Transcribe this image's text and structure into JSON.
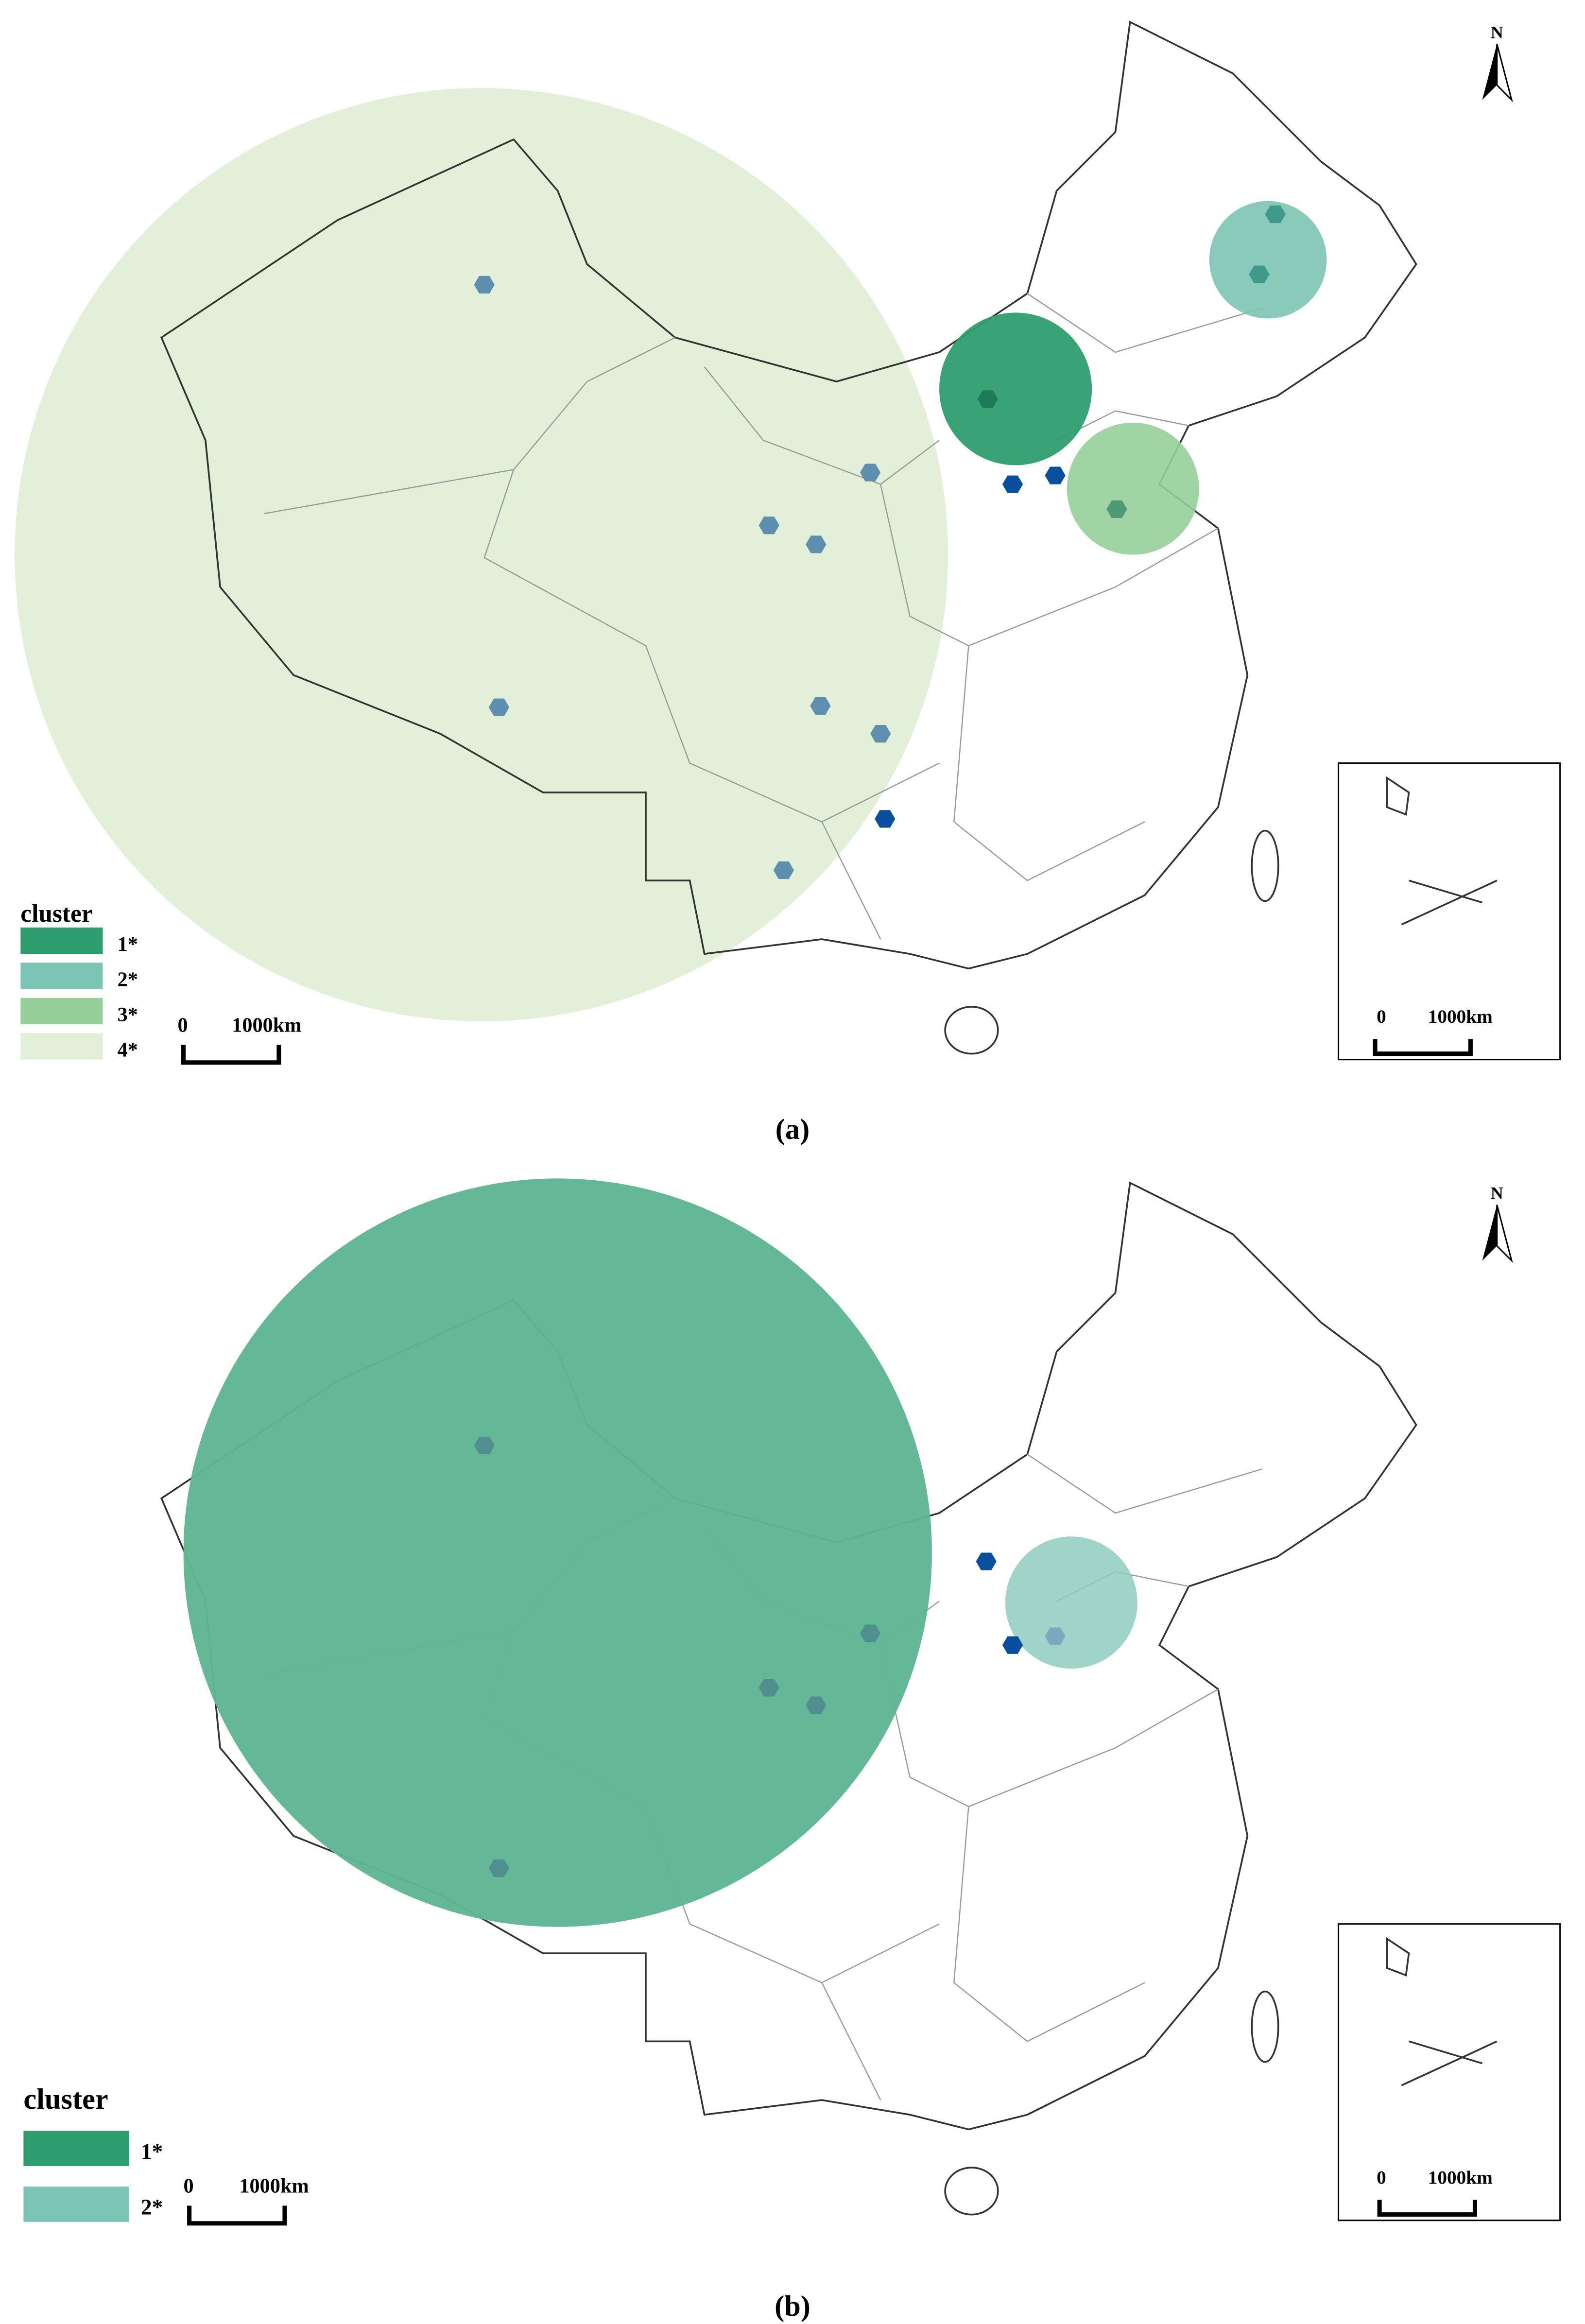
{
  "panels": [
    {
      "caption": "(a)",
      "north": "N",
      "legend": {
        "title": "cluster",
        "items": [
          "1*",
          "2*",
          "3*",
          "4*"
        ]
      },
      "scale": {
        "start": "0",
        "end": "1000km"
      },
      "inset_scale": {
        "start": "0",
        "end": "1000km"
      }
    },
    {
      "caption": "(b)",
      "north": "N",
      "legend": {
        "title": "cluster",
        "items": [
          "1*",
          "2*"
        ]
      },
      "scale": {
        "start": "0",
        "end": "1000km"
      },
      "inset_scale": {
        "start": "0",
        "end": "1000km"
      }
    }
  ]
}
